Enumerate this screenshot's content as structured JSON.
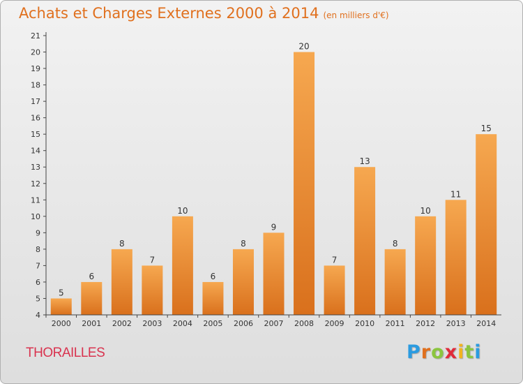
{
  "title": "Achats et Charges Externes 2000 à 2014",
  "unit_note": "(en milliers d'€)",
  "town": "THORAILLES",
  "logo": {
    "letters": [
      "P",
      "r",
      "o",
      "x",
      "i",
      "t",
      "i"
    ],
    "colors": [
      "#2b9be0",
      "#e0701e",
      "#8bc53f",
      "#e02a3a",
      "#f2b320",
      "#8bc53f",
      "#2b9be0"
    ]
  },
  "colors": {
    "bar_light": "#f6a850",
    "bar_dark": "#d9701c",
    "axis": "#444444",
    "grid": "#c8c8c8"
  },
  "chart_data": {
    "type": "bar",
    "categories": [
      "2000",
      "2001",
      "2002",
      "2003",
      "2004",
      "2005",
      "2006",
      "2007",
      "2008",
      "2009",
      "2010",
      "2011",
      "2012",
      "2013",
      "2014"
    ],
    "values": [
      5,
      6,
      8,
      7,
      10,
      6,
      8,
      9,
      20,
      7,
      13,
      8,
      10,
      11,
      15
    ],
    "data_labels": [
      "5",
      "6",
      "8",
      "7",
      "10",
      "6",
      "8",
      "9",
      "20",
      "7",
      "13",
      "8",
      "10",
      "11",
      "15"
    ],
    "yticks": [
      "4",
      "5",
      "6",
      "7",
      "8",
      "9",
      "10",
      "11",
      "12",
      "13",
      "14",
      "15",
      "16",
      "17",
      "18",
      "19",
      "20",
      "21"
    ],
    "ylim": [
      4,
      21
    ],
    "grid": false,
    "xlabel": "",
    "ylabel": ""
  }
}
